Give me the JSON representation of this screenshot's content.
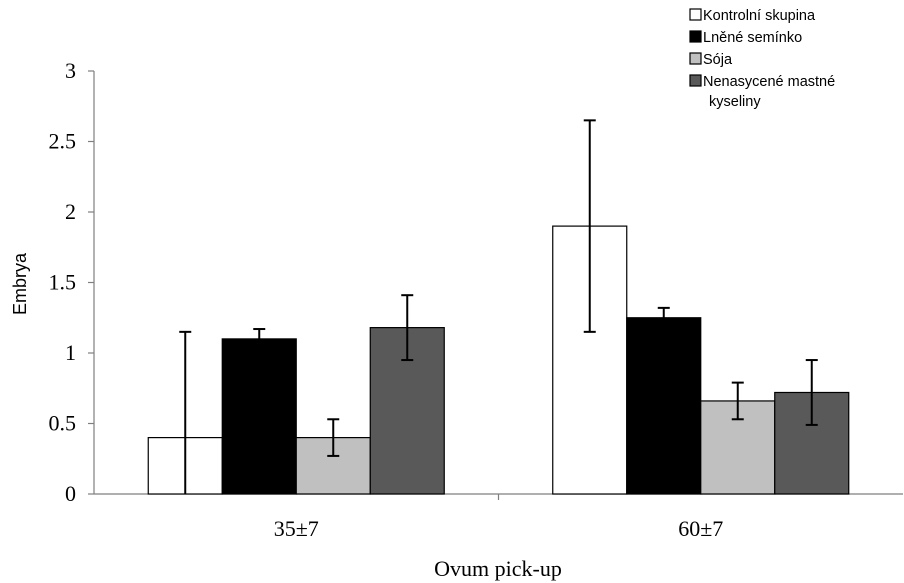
{
  "chart_data": {
    "type": "bar",
    "categories": [
      "35±7",
      "60±7"
    ],
    "series": [
      {
        "name": "Kontrolní skupina",
        "values": [
          0.4,
          1.9
        ],
        "errors": [
          0.75,
          0.75
        ],
        "color": "#ffffff"
      },
      {
        "name": "Lněné semínko",
        "values": [
          1.1,
          1.25
        ],
        "errors": [
          0.07,
          0.07
        ],
        "color": "#000000"
      },
      {
        "name": "Sója",
        "values": [
          0.4,
          0.66
        ],
        "errors": [
          0.13,
          0.13
        ],
        "color": "#c0c0c0"
      },
      {
        "name": "Nenasycené mastné kyseliny",
        "values": [
          1.18,
          0.72
        ],
        "errors": [
          0.23,
          0.23
        ],
        "color": "#595959"
      }
    ],
    "legend_lines": [
      [
        "Kontrolní skupina"
      ],
      [
        "Lněné semínko"
      ],
      [
        "Sója"
      ],
      [
        "Nenasycené mastné",
        "kyseliny"
      ]
    ],
    "xlabel": "Ovum pick-up",
    "ylabel": "Embrya",
    "ylim": [
      0,
      3
    ],
    "yticks": [
      "0",
      "0.5",
      "1",
      "1.5",
      "2",
      "2.5",
      "3"
    ],
    "grid": false,
    "legend_position": "top-right"
  }
}
